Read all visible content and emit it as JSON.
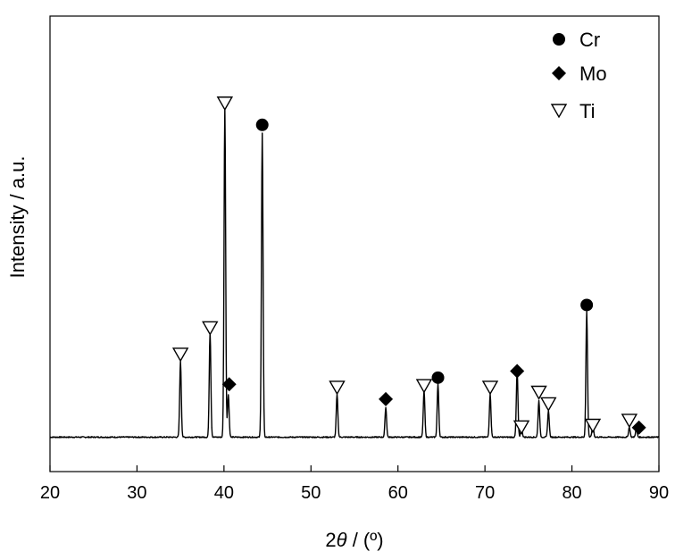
{
  "chart_data": {
    "type": "line",
    "title": "",
    "xlabel_prefix": "2",
    "xlabel_symbol": "θ",
    "xlabel_suffix": " / (º)",
    "ylabel": "Intensity / a.u.",
    "xlim": [
      20,
      90
    ],
    "ylim": [
      0,
      100
    ],
    "xticks": [
      20,
      30,
      40,
      50,
      60,
      70,
      80,
      90
    ],
    "y_tick_labels": false,
    "grid": false,
    "legend_position": "top-right",
    "series": [
      {
        "type": "line",
        "color": "#000000",
        "baseline": 1.5,
        "peaks": [
          {
            "x": 35.0,
            "y": 23
          },
          {
            "x": 38.4,
            "y": 32
          },
          {
            "x": 40.1,
            "y": 100
          },
          {
            "x": 40.5,
            "y": 13
          },
          {
            "x": 44.4,
            "y": 92
          },
          {
            "x": 53.0,
            "y": 13
          },
          {
            "x": 58.6,
            "y": 9
          },
          {
            "x": 63.0,
            "y": 14
          },
          {
            "x": 64.6,
            "y": 16
          },
          {
            "x": 70.6,
            "y": 13
          },
          {
            "x": 73.7,
            "y": 20
          },
          {
            "x": 74.2,
            "y": 3
          },
          {
            "x": 76.2,
            "y": 11
          },
          {
            "x": 77.3,
            "y": 8
          },
          {
            "x": 81.7,
            "y": 38
          },
          {
            "x": 82.4,
            "y": 4
          },
          {
            "x": 86.6,
            "y": 3
          },
          {
            "x": 87.4,
            "y": 2.5
          }
        ]
      }
    ],
    "markers": {
      "Cr": [
        {
          "x": 44.4,
          "y": 96
        },
        {
          "x": 64.6,
          "y": 19.5
        },
        {
          "x": 81.7,
          "y": 41.5
        }
      ],
      "Mo": [
        {
          "x": 40.6,
          "y": 17.5
        },
        {
          "x": 58.6,
          "y": 13
        },
        {
          "x": 73.7,
          "y": 21.5
        },
        {
          "x": 87.7,
          "y": 4.4
        }
      ],
      "Ti": [
        {
          "x": 35.0,
          "y": 26.5
        },
        {
          "x": 38.4,
          "y": 34.5
        },
        {
          "x": 40.1,
          "y": 102.5
        },
        {
          "x": 53.0,
          "y": 16.5
        },
        {
          "x": 63.0,
          "y": 17
        },
        {
          "x": 70.6,
          "y": 16.5
        },
        {
          "x": 74.2,
          "y": 4.5
        },
        {
          "x": 76.2,
          "y": 15
        },
        {
          "x": 77.3,
          "y": 11.5
        },
        {
          "x": 82.4,
          "y": 5
        },
        {
          "x": 86.6,
          "y": 6.5
        }
      ]
    },
    "legend": [
      {
        "label": "Cr",
        "marker": "filled-circle"
      },
      {
        "label": "Mo",
        "marker": "filled-diamond"
      },
      {
        "label": "Ti",
        "marker": "open-down-triangle"
      }
    ]
  }
}
